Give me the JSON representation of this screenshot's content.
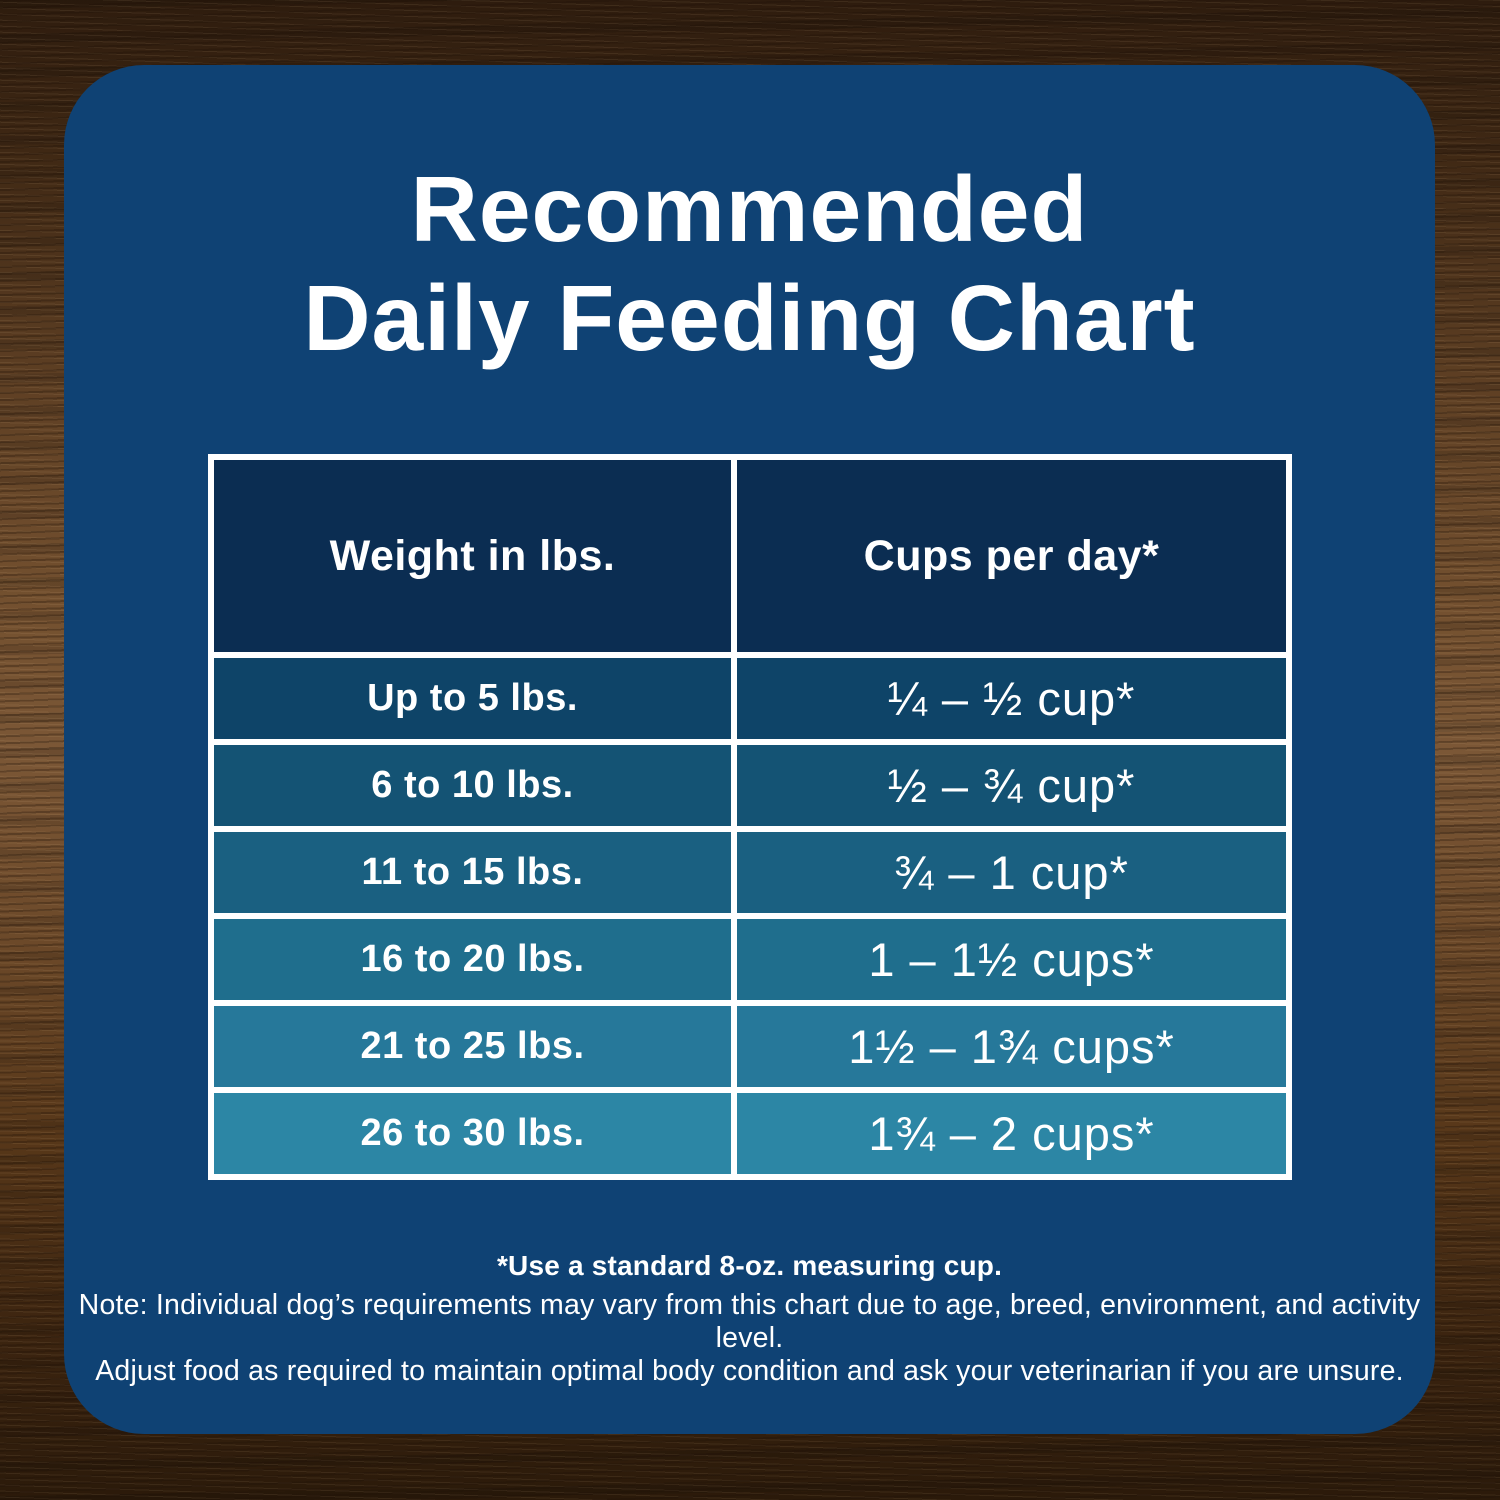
{
  "title": {
    "line1": "Recommended",
    "line2": "Daily Feeding Chart"
  },
  "feeding_table": {
    "headers": [
      "Weight in lbs.",
      "Cups per day*"
    ],
    "rows": [
      {
        "weight": "Up to 5 lbs.",
        "cups": "¼ – ½ cup*",
        "color": "#0e4468"
      },
      {
        "weight": "6 to 10 lbs.",
        "cups": "½ – ¾ cup*",
        "color": "#145374"
      },
      {
        "weight": "11 to 15 lbs.",
        "cups": "¾ – 1 cup*",
        "color": "#1a6081"
      },
      {
        "weight": "16 to 20 lbs.",
        "cups": "1 – 1½ cups*",
        "color": "#1f6e8d"
      },
      {
        "weight": "21 to 25 lbs.",
        "cups": "1½ – 1¾ cups*",
        "color": "#26789a"
      },
      {
        "weight": "26 to 30 lbs.",
        "cups": "1¾ – 2 cups*",
        "color": "#2c86a5"
      }
    ]
  },
  "footnotes": {
    "measuring_cup": "*Use a standard 8-oz. measuring cup.",
    "note_line1": "Note: Individual dog’s requirements may vary from this chart due to age, breed, environment, and activity level.",
    "note_line2": "Adjust food as required to maintain optimal body condition and ask your veterinarian if you are unsure."
  },
  "colors": {
    "card_background": "#0f4274",
    "header_background": "#0b2d52",
    "table_border": "#ffffff",
    "text": "#ffffff",
    "wood_background": "#5d3e26"
  },
  "chart_data": {
    "type": "table",
    "title": "Recommended Daily Feeding Chart",
    "columns": [
      "Weight in lbs.",
      "Cups per day*"
    ],
    "rows": [
      [
        "Up to 5 lbs.",
        "¼ – ½ cup*"
      ],
      [
        "6 to 10 lbs.",
        "½ – ¾ cup*"
      ],
      [
        "11 to 15 lbs.",
        "¾ – 1 cup*"
      ],
      [
        "16 to 20 lbs.",
        "1 – 1½ cups*"
      ],
      [
        "21 to 25 lbs.",
        "1½ – 1¾ cups*"
      ],
      [
        "26 to 30 lbs.",
        "1¾ – 2 cups*"
      ]
    ],
    "footnote": "*Use a standard 8-oz. measuring cup."
  }
}
